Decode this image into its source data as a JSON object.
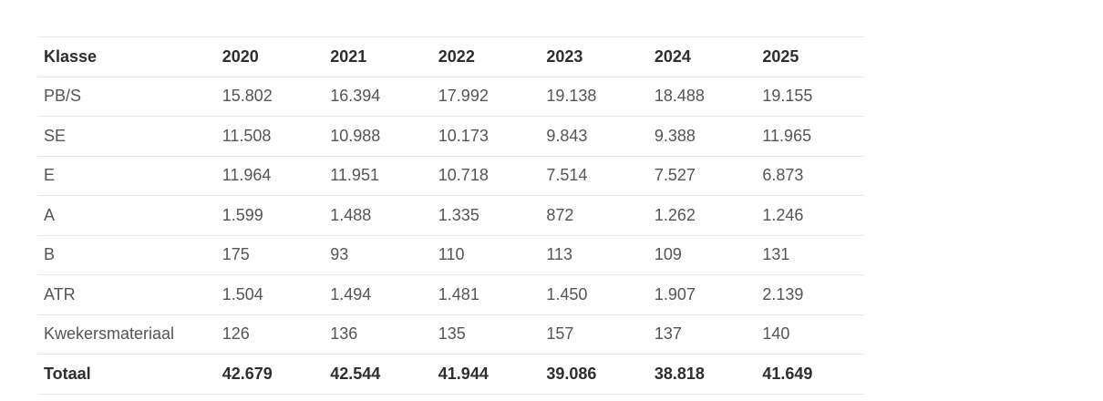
{
  "table": {
    "headers": [
      "Klasse",
      "2020",
      "2021",
      "2022",
      "2023",
      "2024",
      "2025"
    ],
    "rows": [
      [
        "PB/S",
        "15.802",
        "16.394",
        "17.992",
        "19.138",
        "18.488",
        "19.155"
      ],
      [
        "SE",
        "11.508",
        "10.988",
        "10.173",
        "9.843",
        "9.388",
        "11.965"
      ],
      [
        "E",
        "11.964",
        "11.951",
        "10.718",
        "7.514",
        "7.527",
        "6.873"
      ],
      [
        "A",
        "1.599",
        "1.488",
        "1.335",
        "872",
        "1.262",
        "1.246"
      ],
      [
        "B",
        "175",
        "93",
        "110",
        "113",
        "109",
        "131"
      ],
      [
        "ATR",
        "1.504",
        "1.494",
        "1.481",
        "1.450",
        "1.907",
        "2.139"
      ],
      [
        "Kwekersmateriaal",
        "126",
        "136",
        "135",
        "157",
        "137",
        "140"
      ],
      [
        "Totaal",
        "42.679",
        "42.544",
        "41.944",
        "39.086",
        "38.818",
        "41.649"
      ]
    ]
  }
}
